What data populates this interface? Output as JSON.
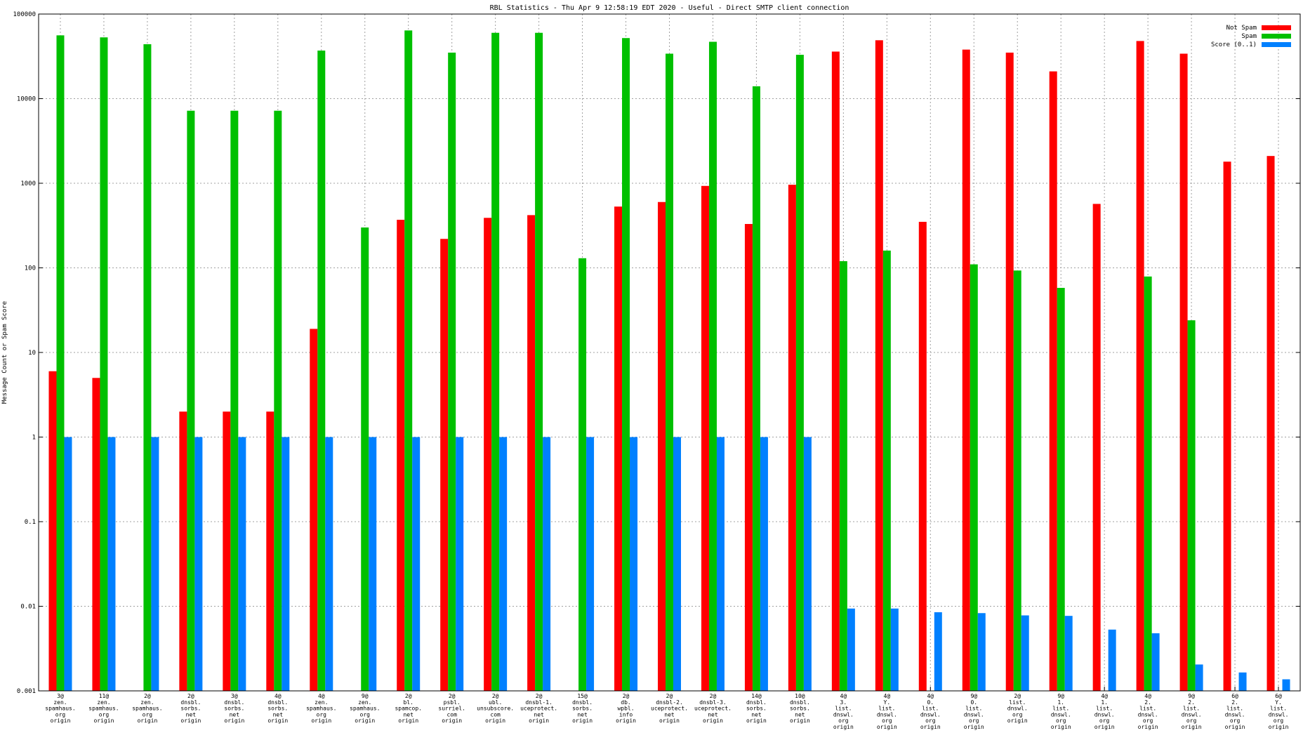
{
  "chart_data": {
    "type": "bar",
    "title": "RBL Statistics - Thu Apr  9 12:58:19 EDT 2020 - Useful - Direct SMTP client connection",
    "ylabel": "Message Count or Spam Score",
    "yscale": "log",
    "ylim": [
      0.001,
      100000
    ],
    "y_ticks": [
      "0.001",
      "0.01",
      "0.1",
      "1",
      "10",
      "100",
      "1000",
      "10000",
      "100000"
    ],
    "grid": true,
    "legend_position": "top-right",
    "categories": [
      [
        "3@",
        "zen.",
        "spamhaus.",
        "org",
        "origin"
      ],
      [
        "11@",
        "zen.",
        "spamhaus.",
        "org",
        "origin"
      ],
      [
        "2@",
        "zen.",
        "spamhaus.",
        "org",
        "origin"
      ],
      [
        "2@",
        "dnsbl.",
        "sorbs.",
        "net",
        "origin"
      ],
      [
        "3@",
        "dnsbl.",
        "sorbs.",
        "net",
        "origin"
      ],
      [
        "4@",
        "dnsbl.",
        "sorbs.",
        "net",
        "origin"
      ],
      [
        "4@",
        "zen.",
        "spamhaus.",
        "org",
        "origin"
      ],
      [
        "9@",
        "zen.",
        "spamhaus.",
        "org",
        "origin"
      ],
      [
        "2@",
        "bl.",
        "spamcop.",
        "net",
        "origin"
      ],
      [
        "2@",
        "psbl.",
        "surriel.",
        "com",
        "origin"
      ],
      [
        "2@",
        "ubl.",
        "unsubscore.",
        "com",
        "origin"
      ],
      [
        "2@",
        "dnsbl-1.",
        "uceprotect.",
        "net",
        "origin"
      ],
      [
        "15@",
        "dnsbl.",
        "sorbs.",
        "net",
        "origin"
      ],
      [
        "2@",
        "db.",
        "wpbl.",
        "info",
        "origin"
      ],
      [
        "2@",
        "dnsbl-2.",
        "uceprotect.",
        "net",
        "origin"
      ],
      [
        "2@",
        "dnsbl-3.",
        "uceprotect.",
        "net",
        "origin"
      ],
      [
        "14@",
        "dnsbl.",
        "sorbs.",
        "net",
        "origin"
      ],
      [
        "10@",
        "dnsbl.",
        "sorbs.",
        "net",
        "origin"
      ],
      [
        "4@",
        "3.",
        "list.",
        "dnswl.",
        "org",
        "origin"
      ],
      [
        "4@",
        "Y.",
        "list.",
        "dnswl.",
        "org",
        "origin"
      ],
      [
        "4@",
        "0.",
        "list.",
        "dnswl.",
        "org",
        "origin"
      ],
      [
        "9@",
        "0.",
        "list.",
        "dnswl.",
        "org",
        "origin"
      ],
      [
        "2@",
        "list.",
        "dnswl.",
        "org",
        "origin"
      ],
      [
        "9@",
        "1.",
        "list.",
        "dnswl.",
        "org",
        "origin"
      ],
      [
        "4@",
        "1.",
        "list.",
        "dnswl.",
        "org",
        "origin"
      ],
      [
        "4@",
        "2.",
        "list.",
        "dnswl.",
        "org",
        "origin"
      ],
      [
        "9@",
        "2.",
        "list.",
        "dnswl.",
        "org",
        "origin"
      ],
      [
        "6@",
        "2.",
        "list.",
        "dnswl.",
        "org",
        "origin"
      ],
      [
        "6@",
        "Y.",
        "list.",
        "dnswl.",
        "org",
        "origin"
      ]
    ],
    "series": [
      {
        "name": "Not Spam",
        "color": "#ff0000",
        "values": [
          6,
          5,
          null,
          2,
          2,
          2,
          19,
          null,
          370,
          220,
          390,
          420,
          null,
          530,
          600,
          930,
          330,
          960,
          36000,
          49000,
          350,
          38000,
          35000,
          21000,
          570,
          48000,
          34000,
          1800,
          2100
        ]
      },
      {
        "name": "Spam",
        "color": "#00c000",
        "values": [
          56000,
          53000,
          44000,
          7200,
          7200,
          7200,
          37000,
          300,
          64000,
          35000,
          60000,
          60000,
          130,
          52000,
          34000,
          47000,
          14000,
          33000,
          120,
          160,
          null,
          110,
          93,
          58,
          null,
          79,
          24,
          null,
          null
        ]
      },
      {
        "name": "Score (0..1)",
        "color": "#0080ff",
        "values": [
          1,
          1,
          1,
          1,
          1,
          1,
          1,
          1,
          1,
          1,
          1,
          1,
          1,
          1,
          1,
          1,
          1,
          1,
          0.0094,
          0.0094,
          0.0085,
          0.0083,
          0.0078,
          0.0077,
          0.0053,
          0.0048,
          0.00205,
          0.00165,
          0.00137
        ]
      }
    ]
  }
}
